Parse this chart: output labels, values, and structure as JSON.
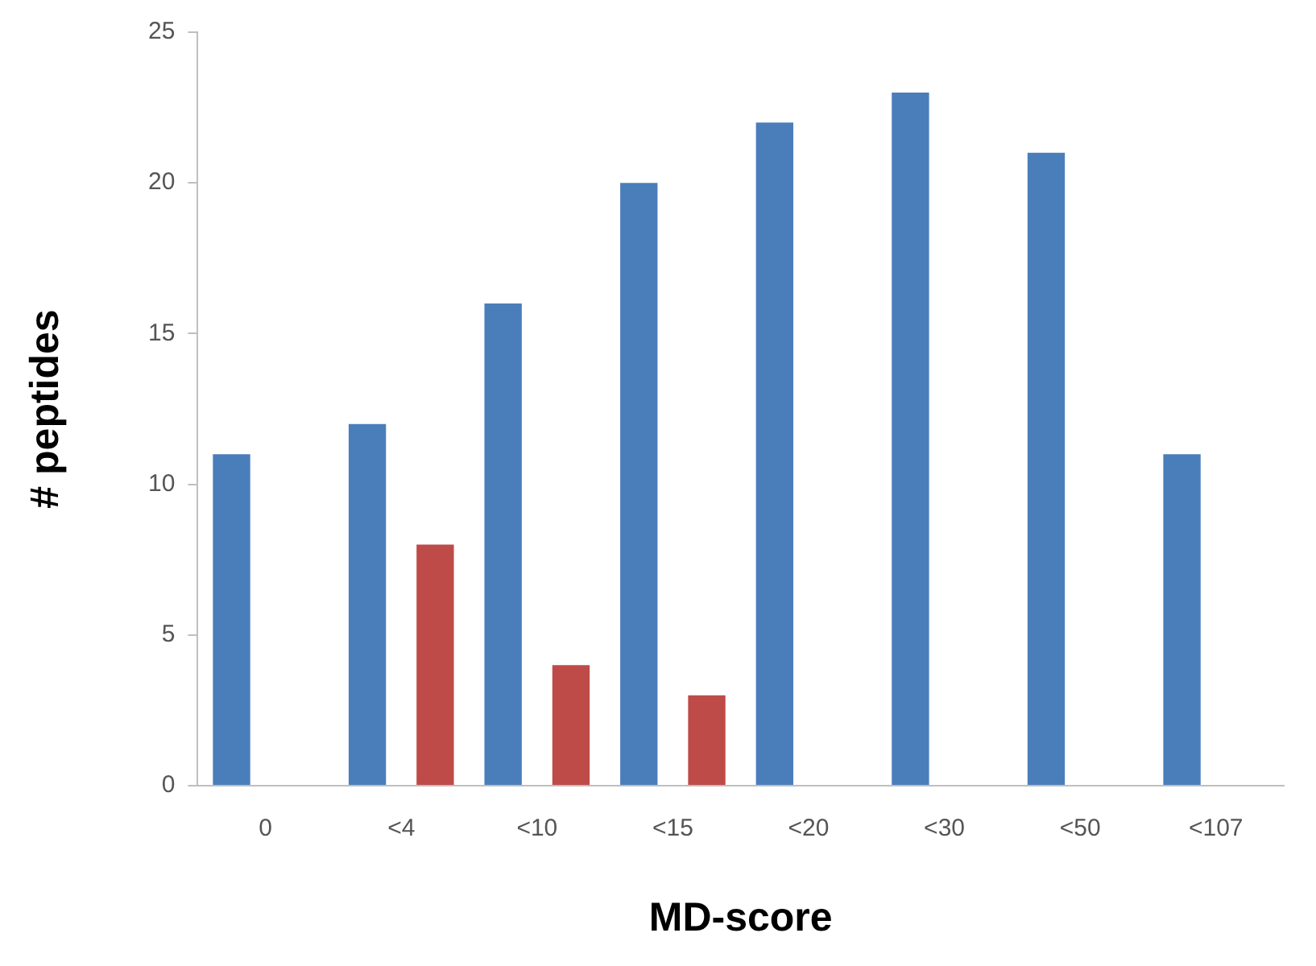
{
  "chart_data": {
    "type": "bar",
    "xlabel": "MD-score",
    "ylabel": "# peptides",
    "categories": [
      "0",
      "<4",
      "<10",
      "<15",
      "<20",
      "<30",
      "<50",
      "<107"
    ],
    "series": [
      {
        "color": "#4a7ebb",
        "values": [
          11,
          12,
          16,
          20,
          22,
          23,
          21,
          11
        ]
      },
      {
        "color": "#be4b48",
        "values": [
          null,
          8,
          4,
          3,
          null,
          null,
          null,
          null
        ]
      }
    ],
    "ylim": [
      0,
      25
    ],
    "yticks": [
      0,
      5,
      10,
      15,
      20,
      25
    ],
    "grid": false,
    "legend": false
  }
}
